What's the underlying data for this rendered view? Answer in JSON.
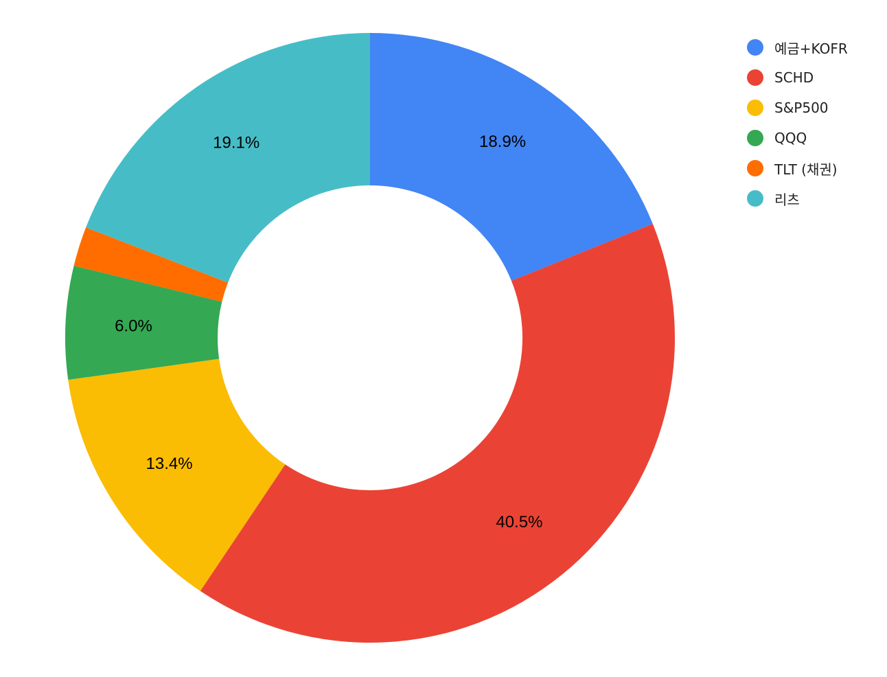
{
  "chart_data": {
    "type": "pie",
    "donut": true,
    "hole_fraction": 0.5,
    "legend_position": "right",
    "categories": [
      "예금+KOFR",
      "SCHD",
      "S&P500",
      "QQQ",
      "TLT (채권)",
      "리츠"
    ],
    "values": [
      18.9,
      40.5,
      13.4,
      6.0,
      2.1,
      19.1
    ],
    "data_labels": [
      "18.9%",
      "40.5%",
      "13.4%",
      "6.0%",
      "",
      "19.1%"
    ],
    "colors": [
      "#4285F4",
      "#EA4335",
      "#FBBC04",
      "#34A853",
      "#FF6D01",
      "#46BDC6"
    ]
  }
}
